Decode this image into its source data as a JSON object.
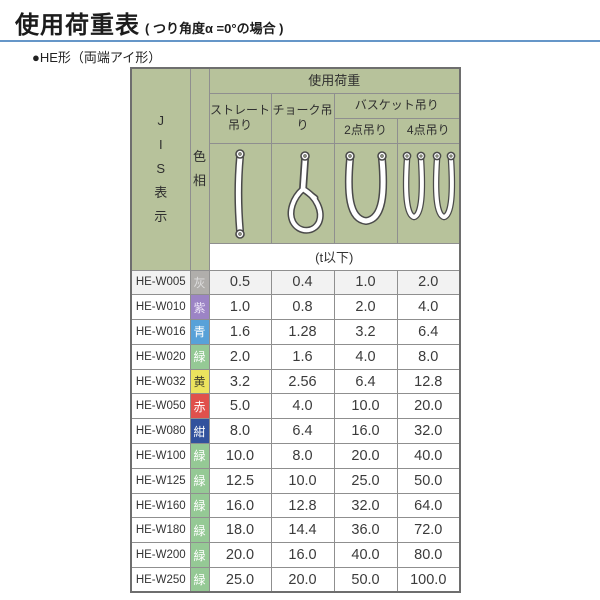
{
  "page": {
    "title": "使用荷重表",
    "title_note": "( つり角度α =0°の場合 )",
    "accent_color": "#6596c8",
    "section_label": "●HE形（両端アイ形）"
  },
  "table": {
    "header": {
      "header_bg": "#b7c29b",
      "jis_label": "JIS表示",
      "hue_label": "色相",
      "load_label": "使用荷重",
      "straight_label": "ストレート吊り",
      "choke_label": "チョーク吊り",
      "basket_label": "バスケット吊り",
      "basket2_label": "2点吊り",
      "basket4_label": "4点吊り",
      "unit_label": "(t以下)",
      "icons": [
        "straight-sling",
        "choke-sling",
        "basket-2point-sling",
        "basket-4point-sling"
      ]
    },
    "rows": [
      {
        "code": "HE-W005",
        "hue": {
          "label": "灰",
          "bg": "#b0aeab",
          "fg": "#dedede"
        },
        "values": [
          "0.5",
          "0.4",
          "1.0",
          "2.0"
        ]
      },
      {
        "code": "HE-W010",
        "hue": {
          "label": "紫",
          "bg": "#9c84c5",
          "fg": "#eae3f6"
        },
        "values": [
          "1.0",
          "0.8",
          "2.0",
          "4.0"
        ]
      },
      {
        "code": "HE-W016",
        "hue": {
          "label": "青",
          "bg": "#58a1d8",
          "fg": "#ffffff"
        },
        "values": [
          "1.6",
          "1.28",
          "3.2",
          "6.4"
        ]
      },
      {
        "code": "HE-W020",
        "hue": {
          "label": "緑",
          "bg": "#95c995",
          "fg": "#ffffff"
        },
        "values": [
          "2.0",
          "1.6",
          "4.0",
          "8.0"
        ]
      },
      {
        "code": "HE-W032",
        "hue": {
          "label": "黄",
          "bg": "#ebe35e",
          "fg": "#44442f"
        },
        "values": [
          "3.2",
          "2.56",
          "6.4",
          "12.8"
        ]
      },
      {
        "code": "HE-W050",
        "hue": {
          "label": "赤",
          "bg": "#e0514c",
          "fg": "#ffffff"
        },
        "values": [
          "5.0",
          "4.0",
          "10.0",
          "20.0"
        ]
      },
      {
        "code": "HE-W080",
        "hue": {
          "label": "紺",
          "bg": "#32529d",
          "fg": "#ffffff"
        },
        "values": [
          "8.0",
          "6.4",
          "16.0",
          "32.0"
        ]
      },
      {
        "code": "HE-W100",
        "hue": {
          "label": "緑",
          "bg": "#95c995",
          "fg": "#ffffff"
        },
        "values": [
          "10.0",
          "8.0",
          "20.0",
          "40.0"
        ]
      },
      {
        "code": "HE-W125",
        "hue": {
          "label": "緑",
          "bg": "#95c995",
          "fg": "#ffffff"
        },
        "values": [
          "12.5",
          "10.0",
          "25.0",
          "50.0"
        ]
      },
      {
        "code": "HE-W160",
        "hue": {
          "label": "緑",
          "bg": "#95c995",
          "fg": "#ffffff"
        },
        "values": [
          "16.0",
          "12.8",
          "32.0",
          "64.0"
        ]
      },
      {
        "code": "HE-W180",
        "hue": {
          "label": "緑",
          "bg": "#95c995",
          "fg": "#ffffff"
        },
        "values": [
          "18.0",
          "14.4",
          "36.0",
          "72.0"
        ]
      },
      {
        "code": "HE-W200",
        "hue": {
          "label": "緑",
          "bg": "#95c995",
          "fg": "#ffffff"
        },
        "values": [
          "20.0",
          "16.0",
          "40.0",
          "80.0"
        ]
      },
      {
        "code": "HE-W250",
        "hue": {
          "label": "緑",
          "bg": "#95c995",
          "fg": "#ffffff"
        },
        "values": [
          "25.0",
          "20.0",
          "50.0",
          "100.0"
        ]
      }
    ]
  }
}
